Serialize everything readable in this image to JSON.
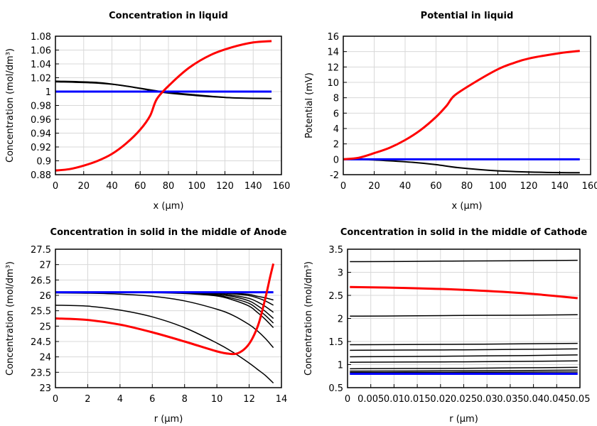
{
  "chart_data": [
    {
      "type": "line",
      "title": "Concentration in liquid",
      "xlabel": "x (µm)",
      "ylabel": "Concentration (mol/dm³)",
      "xlim": [
        0,
        160
      ],
      "ylim": [
        0.88,
        1.08
      ],
      "xticks": [
        0,
        20,
        40,
        60,
        80,
        100,
        120,
        140,
        160
      ],
      "yticks": [
        0.88,
        0.9,
        0.92,
        0.94,
        0.96,
        0.98,
        1,
        1.02,
        1.04,
        1.06,
        1.08
      ],
      "ytick_labels": [
        "0.88",
        "0.9",
        "0.92",
        "0.94",
        "0.96",
        "0.98",
        "1",
        "1.02",
        "1.04",
        "1.06",
        "1.08"
      ],
      "grid": true,
      "series": [
        {
          "color": "#000000",
          "width": 2,
          "points": [
            [
              0,
              1.015
            ],
            [
              30,
              1.013
            ],
            [
              50,
              1.008
            ],
            [
              75,
              1.0
            ],
            [
              100,
              0.995
            ],
            [
              125,
              0.991
            ],
            [
              153,
              0.99
            ]
          ]
        },
        {
          "color": "#000000",
          "width": 1.5,
          "points": [
            [
              0,
              1.014
            ],
            [
              30,
              1.012
            ],
            [
              50,
              1.008
            ],
            [
              75,
              0.999
            ],
            [
              100,
              0.994
            ],
            [
              125,
              0.991
            ],
            [
              153,
              0.99
            ]
          ]
        },
        {
          "color": "#0000ff",
          "width": 3,
          "points": [
            [
              0,
              1.0
            ],
            [
              153,
              1.0
            ]
          ]
        },
        {
          "color": "#ff0000",
          "width": 3,
          "points": [
            [
              0,
              0.886
            ],
            [
              10,
              0.888
            ],
            [
              20,
              0.893
            ],
            [
              30,
              0.9
            ],
            [
              40,
              0.91
            ],
            [
              50,
              0.925
            ],
            [
              60,
              0.945
            ],
            [
              67,
              0.965
            ],
            [
              72,
              0.99
            ],
            [
              82,
              1.012
            ],
            [
              95,
              1.035
            ],
            [
              110,
              1.053
            ],
            [
              125,
              1.064
            ],
            [
              140,
              1.071
            ],
            [
              153,
              1.073
            ]
          ]
        }
      ]
    },
    {
      "type": "line",
      "title": "Potential in liquid",
      "xlabel": "x (µm)",
      "ylabel": "Potential (mV)",
      "xlim": [
        0,
        160
      ],
      "ylim": [
        -2,
        16
      ],
      "xticks": [
        0,
        20,
        40,
        60,
        80,
        100,
        120,
        140,
        160
      ],
      "yticks": [
        -2,
        0,
        2,
        4,
        6,
        8,
        10,
        12,
        14,
        16
      ],
      "ytick_labels": [
        "-2",
        "0",
        "2",
        "4",
        "6",
        "8",
        "10",
        "12",
        "14",
        "16"
      ],
      "grid": true,
      "series": [
        {
          "color": "#000000",
          "width": 2,
          "points": [
            [
              0,
              0
            ],
            [
              15,
              -0.05
            ],
            [
              30,
              -0.2
            ],
            [
              45,
              -0.4
            ],
            [
              60,
              -0.7
            ],
            [
              75,
              -1.1
            ],
            [
              100,
              -1.5
            ],
            [
              130,
              -1.7
            ],
            [
              153,
              -1.75
            ]
          ]
        },
        {
          "color": "#0000ff",
          "width": 3,
          "points": [
            [
              0,
              0
            ],
            [
              153,
              0
            ]
          ]
        },
        {
          "color": "#ff0000",
          "width": 3,
          "points": [
            [
              0,
              0
            ],
            [
              10,
              0.2
            ],
            [
              20,
              0.8
            ],
            [
              30,
              1.5
            ],
            [
              40,
              2.5
            ],
            [
              50,
              3.8
            ],
            [
              60,
              5.5
            ],
            [
              67,
              7
            ],
            [
              72,
              8.3
            ],
            [
              85,
              10
            ],
            [
              100,
              11.7
            ],
            [
              110,
              12.5
            ],
            [
              120,
              13.1
            ],
            [
              140,
              13.8
            ],
            [
              153,
              14.1
            ]
          ]
        }
      ]
    },
    {
      "type": "line",
      "title": "Concentration in solid in the middle of Anode",
      "xlabel": "r (µm)",
      "ylabel": "Concentration (mol/dm³)",
      "xlim": [
        0,
        14
      ],
      "ylim": [
        23,
        27.5
      ],
      "xticks": [
        0,
        2,
        4,
        6,
        8,
        10,
        12,
        14
      ],
      "yticks": [
        23,
        23.5,
        24,
        24.5,
        25,
        25.5,
        26,
        26.5,
        27,
        27.5
      ],
      "ytick_labels": [
        "23",
        "23.5",
        "24",
        "24.5",
        "25",
        "25.5",
        "26",
        "26.5",
        "27",
        "27.5"
      ],
      "grid": true,
      "x": [
        0,
        2,
        4,
        6,
        8,
        10,
        11,
        12,
        12.5,
        13,
        13.5
      ],
      "series": [
        {
          "color": "#000000",
          "width": 1.5,
          "values": [
            25.68,
            25.65,
            25.52,
            25.3,
            24.95,
            24.45,
            24.15,
            23.8,
            23.6,
            23.4,
            23.15
          ]
        },
        {
          "color": "#000000",
          "width": 1.5,
          "values": [
            26.08,
            26.07,
            26.04,
            25.97,
            25.82,
            25.55,
            25.35,
            25.05,
            24.85,
            24.6,
            24.3
          ]
        },
        {
          "color": "#000000",
          "width": 1.5,
          "values": [
            26.1,
            26.1,
            26.1,
            26.09,
            26.06,
            25.98,
            25.85,
            25.65,
            25.45,
            25.22,
            24.95
          ]
        },
        {
          "color": "#000000",
          "width": 1.5,
          "values": [
            26.1,
            26.1,
            26.1,
            26.1,
            26.07,
            26.0,
            25.9,
            25.74,
            25.56,
            25.35,
            25.1
          ]
        },
        {
          "color": "#000000",
          "width": 1.5,
          "values": [
            26.1,
            26.1,
            26.1,
            26.1,
            26.08,
            26.03,
            25.96,
            25.82,
            25.67,
            25.48,
            25.25
          ]
        },
        {
          "color": "#000000",
          "width": 1.5,
          "values": [
            26.1,
            26.1,
            26.1,
            26.1,
            26.09,
            26.06,
            26.0,
            25.9,
            25.79,
            25.64,
            25.45
          ]
        },
        {
          "color": "#000000",
          "width": 1.5,
          "values": [
            26.1,
            26.1,
            26.1,
            26.1,
            26.1,
            26.08,
            26.05,
            25.99,
            25.92,
            25.82,
            25.68
          ]
        },
        {
          "color": "#000000",
          "width": 1.5,
          "values": [
            26.1,
            26.1,
            26.1,
            26.1,
            26.1,
            26.09,
            26.07,
            26.03,
            25.97,
            25.92,
            25.85
          ]
        },
        {
          "color": "#0000ff",
          "width": 3,
          "values": [
            26.1,
            26.1,
            26.1,
            26.1,
            26.1,
            26.1,
            26.1,
            26.1,
            26.1,
            26.1,
            26.1
          ]
        },
        {
          "color": "#ff0000",
          "width": 3,
          "points": [
            [
              0,
              25.25
            ],
            [
              2,
              25.2
            ],
            [
              4,
              25.05
            ],
            [
              6,
              24.8
            ],
            [
              8,
              24.5
            ],
            [
              10,
              24.18
            ],
            [
              10.8,
              24.1
            ],
            [
              11.3,
              24.12
            ],
            [
              11.8,
              24.3
            ],
            [
              12.2,
              24.6
            ],
            [
              12.6,
              25.1
            ],
            [
              13,
              25.9
            ],
            [
              13.3,
              26.6
            ],
            [
              13.5,
              27.03
            ]
          ]
        }
      ]
    },
    {
      "type": "line",
      "title": "Concentration in solid in the middle of Cathode",
      "xlabel": "r (µm)",
      "ylabel": "Concentration (mol/dm³)",
      "xlim": [
        0,
        0.05
      ],
      "ylim": [
        0.5,
        3.5
      ],
      "xticks": [
        0,
        0.005,
        0.01,
        0.015,
        0.02,
        0.025,
        0.03,
        0.035,
        0.04,
        0.045,
        0.05
      ],
      "xtick_labels": [
        "0",
        "0.005",
        "0.01",
        "0.015",
        "0.02",
        "0.025",
        "0.03",
        "0.035",
        "0.04",
        "0.045",
        "0.05"
      ],
      "yticks": [
        0.5,
        1,
        1.5,
        2,
        2.5,
        3,
        3.5
      ],
      "ytick_labels": [
        "0.5",
        "1",
        "1.5",
        "2",
        "2.5",
        "3",
        "3.5"
      ],
      "grid": true,
      "x": [
        0.0005,
        0.0125,
        0.025,
        0.0375,
        0.0495
      ],
      "series": [
        {
          "color": "#000000",
          "width": 1.5,
          "values": [
            3.23,
            3.235,
            3.245,
            3.25,
            3.26
          ]
        },
        {
          "color": "#000000",
          "width": 1.5,
          "values": [
            2.05,
            2.055,
            2.065,
            2.07,
            2.08
          ]
        },
        {
          "color": "#000000",
          "width": 1.5,
          "values": [
            1.43,
            1.435,
            1.44,
            1.45,
            1.46
          ]
        },
        {
          "color": "#000000",
          "width": 1.5,
          "values": [
            1.31,
            1.315,
            1.32,
            1.33,
            1.34
          ]
        },
        {
          "color": "#000000",
          "width": 1.5,
          "values": [
            1.17,
            1.175,
            1.185,
            1.195,
            1.21
          ]
        },
        {
          "color": "#000000",
          "width": 1.5,
          "values": [
            1.05,
            1.055,
            1.06,
            1.07,
            1.08
          ]
        },
        {
          "color": "#000000",
          "width": 1.5,
          "values": [
            0.91,
            0.915,
            0.92,
            0.93,
            0.94
          ]
        },
        {
          "color": "#000000",
          "width": 1.5,
          "values": [
            0.86,
            0.862,
            0.866,
            0.872,
            0.88
          ]
        },
        {
          "color": "#000000",
          "width": 1.5,
          "values": [
            0.83,
            0.832,
            0.834,
            0.837,
            0.84
          ]
        },
        {
          "color": "#0000ff",
          "width": 3,
          "values": [
            0.8,
            0.8,
            0.8,
            0.8,
            0.8
          ]
        },
        {
          "color": "#ff0000",
          "width": 3,
          "values": [
            2.68,
            2.66,
            2.62,
            2.55,
            2.44
          ]
        }
      ]
    }
  ]
}
